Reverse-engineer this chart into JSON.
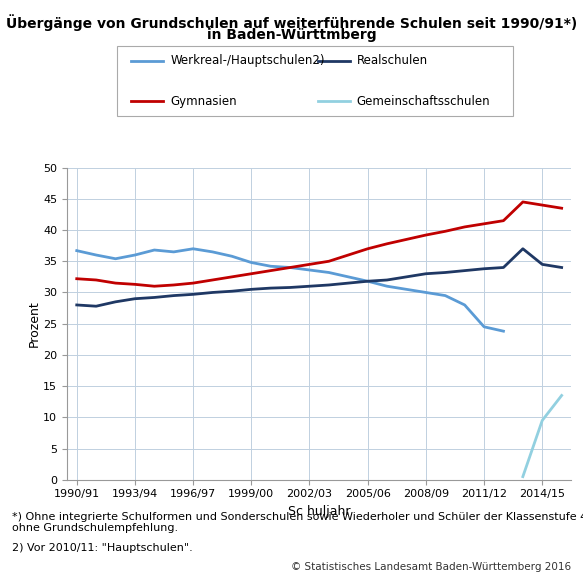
{
  "title_line1": "Übergänge von Grundschulen auf weiterführende Schulen seit 1990/91*)",
  "title_line2": "in Baden-Württmberg",
  "xlabel": "Sc huljahr",
  "ylabel": "Prozent",
  "ylim": [
    0,
    50
  ],
  "yticks": [
    0,
    5,
    10,
    15,
    20,
    25,
    30,
    35,
    40,
    45,
    50
  ],
  "xtick_labels": [
    "1990/91",
    "1993/94",
    "1996/97",
    "1999/00",
    "2002/03",
    "2005/06",
    "2008/09",
    "2011/12",
    "2014/15"
  ],
  "footnote1": "*) Ohne integrierte Schulformen und Sonderschulen sowie Wiederholer und Schüler der Klassenstufe 4\nohne Grundschulempfehlung.",
  "footnote2": "2) Vor 2010/11: \"Hauptschulen\".",
  "copyright": "© Statistisches Landesamt Baden-Württemberg 2016",
  "legend": [
    {
      "label": "Werkreal-/Hauptschulen2)",
      "color": "#5B9BD5"
    },
    {
      "label": "Realschulen",
      "color": "#1F3864"
    },
    {
      "label": "Gymnasien",
      "color": "#C00000"
    },
    {
      "label": "Gemeinschaftsschulen",
      "color": "#92D0E0"
    }
  ],
  "werkreal": [
    36.7,
    36.0,
    35.4,
    36.0,
    36.8,
    36.5,
    37.0,
    36.5,
    35.8,
    34.8,
    34.2,
    34.0,
    33.6,
    33.2,
    32.5,
    31.8,
    31.0,
    30.5,
    30.0,
    29.5,
    28.0,
    24.5,
    23.8,
    null,
    null,
    null
  ],
  "realschulen": [
    28.0,
    27.8,
    28.5,
    29.0,
    29.2,
    29.5,
    29.7,
    30.0,
    30.2,
    30.5,
    30.7,
    30.8,
    31.0,
    31.2,
    31.5,
    31.8,
    32.0,
    32.5,
    33.0,
    33.2,
    33.5,
    33.8,
    34.0,
    37.0,
    34.5,
    34.0
  ],
  "gymnasien": [
    32.2,
    32.0,
    31.5,
    31.3,
    31.0,
    31.2,
    31.5,
    32.0,
    32.5,
    33.0,
    33.5,
    34.0,
    34.5,
    35.0,
    36.0,
    37.0,
    37.8,
    38.5,
    39.2,
    39.8,
    40.5,
    41.0,
    41.5,
    44.5,
    44.0,
    43.5
  ],
  "gemeinschaft": [
    null,
    null,
    null,
    null,
    null,
    null,
    null,
    null,
    null,
    null,
    null,
    null,
    null,
    null,
    null,
    null,
    null,
    null,
    null,
    null,
    null,
    null,
    null,
    0.5,
    9.5,
    13.5
  ],
  "background_color": "#FFFFFF",
  "grid_color": "#C0D0E0",
  "title_fontsize": 10,
  "axis_label_fontsize": 9,
  "tick_fontsize": 8,
  "legend_fontsize": 8.5,
  "footnote_fontsize": 8,
  "copyright_fontsize": 7.5
}
